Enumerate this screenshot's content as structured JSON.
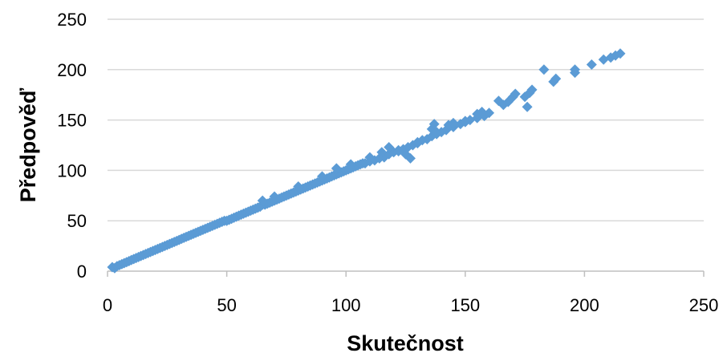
{
  "chart_data": {
    "type": "scatter",
    "title": "",
    "xlabel": "Skutečnost",
    "ylabel": "Předpověď",
    "xlim": [
      0,
      250
    ],
    "ylim": [
      0,
      250
    ],
    "xticks": [
      0,
      50,
      100,
      150,
      200,
      250
    ],
    "yticks": [
      0,
      50,
      100,
      150,
      200,
      250
    ],
    "grid": "horizontal",
    "legend": "none",
    "marker": "diamond",
    "colors": {
      "marker": "#5B9BD5",
      "grid": "#D9D9D9",
      "axis": "#BFBFBF"
    },
    "series": [
      {
        "points": [
          [
            2,
            4
          ],
          [
            3,
            3
          ],
          [
            4,
            5
          ],
          [
            5,
            6
          ],
          [
            6,
            7
          ],
          [
            7,
            8
          ],
          [
            8,
            9
          ],
          [
            9,
            10
          ],
          [
            10,
            11
          ],
          [
            11,
            12
          ],
          [
            12,
            13
          ],
          [
            13,
            14
          ],
          [
            14,
            15
          ],
          [
            15,
            16
          ],
          [
            16,
            17
          ],
          [
            17,
            18
          ],
          [
            18,
            19
          ],
          [
            19,
            20
          ],
          [
            20,
            21
          ],
          [
            21,
            22
          ],
          [
            22,
            23
          ],
          [
            23,
            24
          ],
          [
            24,
            25
          ],
          [
            25,
            26
          ],
          [
            26,
            27
          ],
          [
            27,
            28
          ],
          [
            28,
            29
          ],
          [
            29,
            30
          ],
          [
            30,
            31
          ],
          [
            31,
            32
          ],
          [
            32,
            33
          ],
          [
            33,
            34
          ],
          [
            34,
            35
          ],
          [
            35,
            36
          ],
          [
            36,
            37
          ],
          [
            37,
            38
          ],
          [
            38,
            39
          ],
          [
            39,
            40
          ],
          [
            40,
            41
          ],
          [
            41,
            42
          ],
          [
            42,
            43
          ],
          [
            43,
            44
          ],
          [
            44,
            45
          ],
          [
            45,
            46
          ],
          [
            46,
            47
          ],
          [
            47,
            48
          ],
          [
            48,
            49
          ],
          [
            49,
            50
          ],
          [
            50,
            50
          ],
          [
            51,
            51
          ],
          [
            52,
            52
          ],
          [
            53,
            53
          ],
          [
            54,
            54
          ],
          [
            55,
            55
          ],
          [
            56,
            56
          ],
          [
            57,
            57
          ],
          [
            58,
            58
          ],
          [
            59,
            59
          ],
          [
            60,
            60
          ],
          [
            61,
            61
          ],
          [
            62,
            62
          ],
          [
            63,
            63
          ],
          [
            64,
            64
          ],
          [
            65,
            66
          ],
          [
            66,
            66
          ],
          [
            67,
            67
          ],
          [
            68,
            68
          ],
          [
            69,
            69
          ],
          [
            70,
            70
          ],
          [
            71,
            71
          ],
          [
            72,
            72
          ],
          [
            73,
            73
          ],
          [
            74,
            74
          ],
          [
            75,
            75
          ],
          [
            76,
            76
          ],
          [
            77,
            77
          ],
          [
            78,
            78
          ],
          [
            79,
            79
          ],
          [
            80,
            80
          ],
          [
            81,
            81
          ],
          [
            82,
            82
          ],
          [
            83,
            83
          ],
          [
            84,
            84
          ],
          [
            85,
            85
          ],
          [
            86,
            86
          ],
          [
            87,
            87
          ],
          [
            88,
            88
          ],
          [
            89,
            89
          ],
          [
            90,
            90
          ],
          [
            91,
            91
          ],
          [
            92,
            92
          ],
          [
            93,
            93
          ],
          [
            94,
            94
          ],
          [
            95,
            95
          ],
          [
            96,
            96
          ],
          [
            97,
            97
          ],
          [
            98,
            98
          ],
          [
            99,
            99
          ],
          [
            100,
            100
          ],
          [
            101,
            101
          ],
          [
            102,
            102
          ],
          [
            103,
            103
          ],
          [
            104,
            104
          ],
          [
            105,
            105
          ],
          [
            106,
            106
          ],
          [
            107,
            107
          ],
          [
            108,
            107
          ],
          [
            110,
            109
          ],
          [
            112,
            110
          ],
          [
            114,
            112
          ],
          [
            116,
            113
          ],
          [
            118,
            116
          ],
          [
            120,
            118
          ],
          [
            122,
            120
          ],
          [
            124,
            121
          ],
          [
            126,
            123
          ],
          [
            128,
            125
          ],
          [
            130,
            127
          ],
          [
            132,
            130
          ],
          [
            134,
            131
          ],
          [
            136,
            134
          ],
          [
            138,
            136
          ],
          [
            140,
            138
          ],
          [
            142,
            140
          ],
          [
            145,
            143
          ],
          [
            148,
            146
          ],
          [
            150,
            148
          ],
          [
            152,
            150
          ],
          [
            155,
            152
          ],
          [
            158,
            154
          ],
          [
            160,
            157
          ],
          [
            65,
            70
          ],
          [
            70,
            74
          ],
          [
            80,
            84
          ],
          [
            90,
            94
          ],
          [
            96,
            102
          ],
          [
            102,
            106
          ],
          [
            110,
            113
          ],
          [
            115,
            118
          ],
          [
            118,
            123
          ],
          [
            122,
            119
          ],
          [
            125,
            116
          ],
          [
            127,
            112
          ],
          [
            130,
            128
          ],
          [
            136,
            141
          ],
          [
            137,
            146
          ],
          [
            138,
            138
          ],
          [
            143,
            145
          ],
          [
            145,
            147
          ],
          [
            150,
            149
          ],
          [
            155,
            156
          ],
          [
            157,
            158
          ],
          [
            164,
            169
          ],
          [
            166,
            165
          ],
          [
            168,
            168
          ],
          [
            170,
            173
          ],
          [
            171,
            176
          ],
          [
            175,
            173
          ],
          [
            176,
            163
          ],
          [
            177,
            177
          ],
          [
            178,
            180
          ],
          [
            183,
            200
          ],
          [
            187,
            188
          ],
          [
            188,
            191
          ],
          [
            196,
            200
          ],
          [
            196,
            197
          ],
          [
            203,
            205
          ],
          [
            208,
            210
          ],
          [
            211,
            212
          ],
          [
            213,
            214
          ],
          [
            215,
            216
          ]
        ]
      }
    ]
  }
}
